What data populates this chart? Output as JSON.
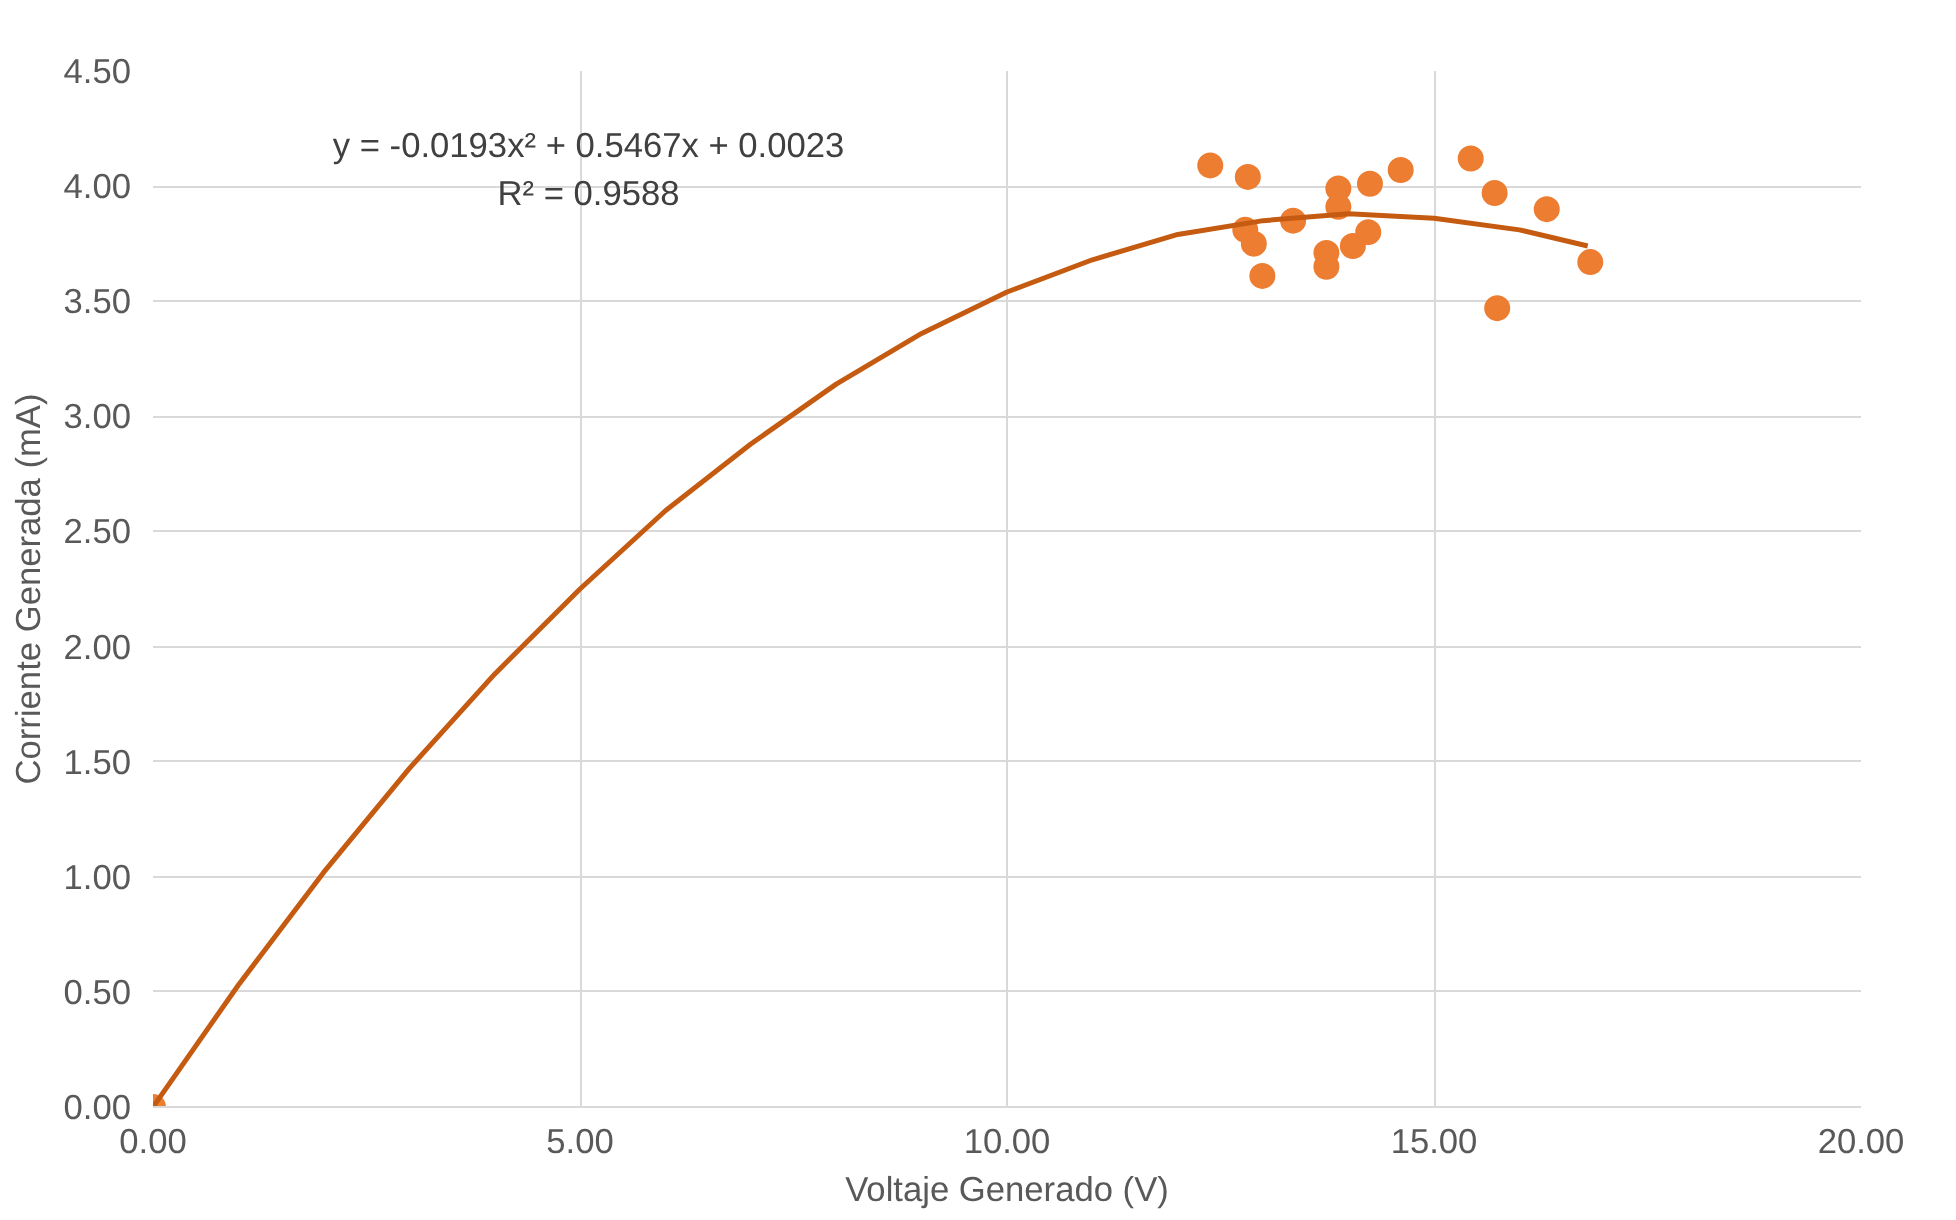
{
  "chart_data": {
    "type": "scatter",
    "xlabel": "Voltaje Generado (V)",
    "ylabel": "Corriente Generada (mA)",
    "xlim": [
      0,
      20
    ],
    "ylim": [
      0,
      4.5
    ],
    "xticks": [
      {
        "value": 0,
        "label": "0.00"
      },
      {
        "value": 5,
        "label": "5.00"
      },
      {
        "value": 10,
        "label": "10.00"
      },
      {
        "value": 15,
        "label": "15.00"
      },
      {
        "value": 20,
        "label": "20.00"
      }
    ],
    "yticks": [
      {
        "value": 0,
        "label": "0.00"
      },
      {
        "value": 0.5,
        "label": "0.50"
      },
      {
        "value": 1,
        "label": "1.00"
      },
      {
        "value": 1.5,
        "label": "1.50"
      },
      {
        "value": 2,
        "label": "2.00"
      },
      {
        "value": 2.5,
        "label": "2.50"
      },
      {
        "value": 3,
        "label": "3.00"
      },
      {
        "value": 3.5,
        "label": "3.50"
      },
      {
        "value": 4,
        "label": "4.00"
      },
      {
        "value": 4.5,
        "label": "4.50"
      }
    ],
    "grid": true,
    "series": [
      {
        "marker": "circle",
        "color": "#ed7d31",
        "x": [
          0,
          12.38,
          12.82,
          12.79,
          12.89,
          12.99,
          13.35,
          13.88,
          13.88,
          13.74,
          13.74,
          14.05,
          14.23,
          14.25,
          14.61,
          15.43,
          15.71,
          16.32,
          15.74,
          16.83
        ],
        "values": [
          0,
          4.09,
          4.04,
          3.81,
          3.75,
          3.61,
          3.85,
          3.99,
          3.91,
          3.71,
          3.65,
          3.74,
          3.8,
          4.01,
          4.07,
          4.12,
          3.97,
          3.9,
          3.47,
          3.67
        ]
      },
      {
        "type": "line",
        "marker": "none",
        "color": "#c55a11",
        "x": [
          0,
          1,
          2,
          3,
          4,
          5,
          6,
          7,
          8,
          9,
          10,
          11,
          12,
          13,
          14,
          15,
          16,
          16.8
        ],
        "values": [
          0,
          0.53,
          1.02,
          1.47,
          1.88,
          2.25,
          2.59,
          2.88,
          3.14,
          3.36,
          3.54,
          3.68,
          3.79,
          3.85,
          3.88,
          3.86,
          3.81,
          3.74
        ]
      }
    ],
    "annotations": [
      "y = -0.0193x² + 0.5467x + 0.0023",
      "R² = 0.9588"
    ]
  }
}
